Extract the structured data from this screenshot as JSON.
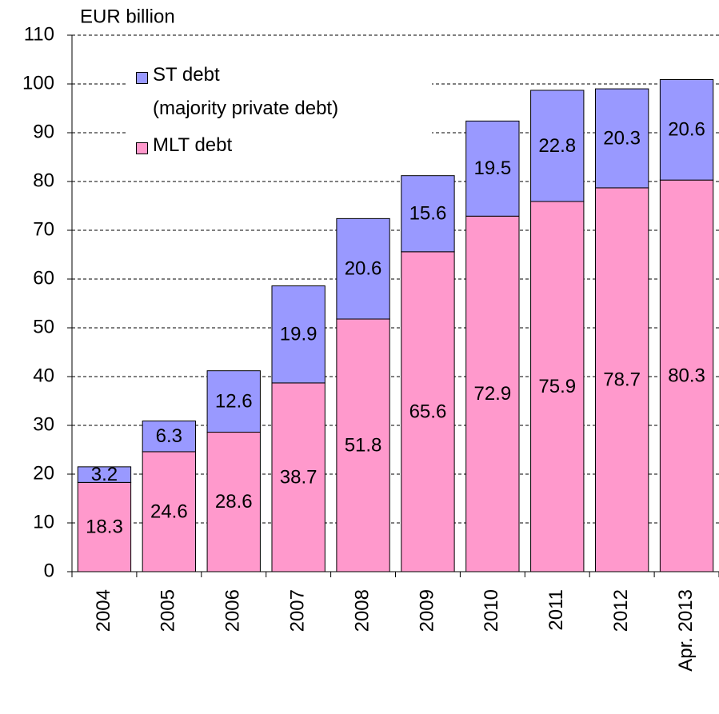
{
  "chart_data": {
    "type": "stacked_bar",
    "y_label": "EUR billion",
    "categories": [
      "2004",
      "2005",
      "2006",
      "2007",
      "2008",
      "2009",
      "2010",
      "2011",
      "2012",
      "Apr. 2013"
    ],
    "series": [
      {
        "name": "MLT debt",
        "color": "#ff99cc",
        "values": [
          18.3,
          24.6,
          28.6,
          38.7,
          51.8,
          65.6,
          72.9,
          75.9,
          78.7,
          80.3
        ]
      },
      {
        "name": "ST debt\n(majority private debt)",
        "color": "#9999ff",
        "values": [
          3.2,
          6.3,
          12.6,
          19.9,
          20.6,
          15.6,
          19.5,
          22.8,
          20.3,
          20.6
        ]
      }
    ],
    "ylim": [
      0,
      110
    ],
    "yticks": [
      0,
      10,
      20,
      30,
      40,
      50,
      60,
      70,
      80,
      90,
      100,
      110
    ],
    "grid": true
  }
}
